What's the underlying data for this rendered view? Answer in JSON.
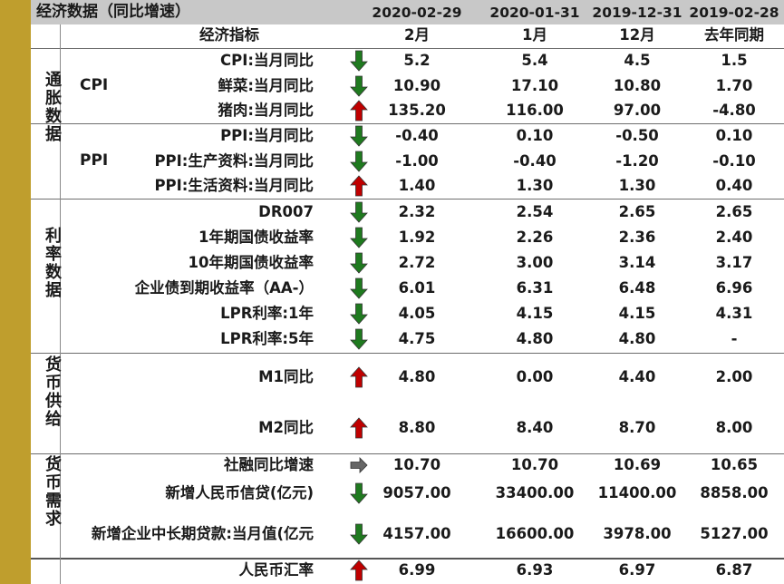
{
  "header": {
    "title": "经济数据（同比增速）",
    "dates": [
      "2020-02-29",
      "2020-01-31",
      "2019-12-31",
      "2019-02-28"
    ]
  },
  "columns": {
    "indicator": "经济指标",
    "c1": "2月",
    "c2": "1月",
    "c3": "12月",
    "c4": "去年同期"
  },
  "groups": {
    "inflation": "通胀数据",
    "rates": "利率数据",
    "money_supply": "货币供给",
    "money_demand": "货币需求"
  },
  "subgroups": {
    "cpi": "CPI",
    "ppi": "PPI"
  },
  "colors": {
    "up": "#c00000",
    "down": "#1f7a1f",
    "flat": "#666666",
    "gold": "#bf9e2d",
    "header_bg": "#c8c8c8"
  },
  "rows": [
    {
      "label": "CPI:当月同比",
      "trend": "down",
      "v1": "5.2",
      "v2": "5.4",
      "v3": "4.5",
      "v4": "1.5"
    },
    {
      "label": "鲜菜:当月同比",
      "trend": "down",
      "v1": "10.90",
      "v2": "17.10",
      "v3": "10.80",
      "v4": "1.70"
    },
    {
      "label": "猪肉:当月同比",
      "trend": "up",
      "v1": "135.20",
      "v2": "116.00",
      "v3": "97.00",
      "v4": "-4.80"
    },
    {
      "label": "PPI:当月同比",
      "trend": "down",
      "v1": "-0.40",
      "v2": "0.10",
      "v3": "-0.50",
      "v4": "0.10"
    },
    {
      "label": "PPI:生产资料:当月同比",
      "trend": "down",
      "v1": "-1.00",
      "v2": "-0.40",
      "v3": "-1.20",
      "v4": "-0.10"
    },
    {
      "label": "PPI:生活资料:当月同比",
      "trend": "up",
      "v1": "1.40",
      "v2": "1.30",
      "v3": "1.30",
      "v4": "0.40"
    },
    {
      "label": "DR007",
      "trend": "down",
      "v1": "2.32",
      "v2": "2.54",
      "v3": "2.65",
      "v4": "2.65"
    },
    {
      "label": "1年期国债收益率",
      "trend": "down",
      "v1": "1.92",
      "v2": "2.26",
      "v3": "2.36",
      "v4": "2.40"
    },
    {
      "label": "10年期国债收益率",
      "trend": "down",
      "v1": "2.72",
      "v2": "3.00",
      "v3": "3.14",
      "v4": "3.17"
    },
    {
      "label": "企业债到期收益率（AA-）",
      "trend": "down",
      "v1": "6.01",
      "v2": "6.31",
      "v3": "6.48",
      "v4": "6.96"
    },
    {
      "label": "LPR利率:1年",
      "trend": "down",
      "v1": "4.05",
      "v2": "4.15",
      "v3": "4.15",
      "v4": "4.31"
    },
    {
      "label": "LPR利率:5年",
      "trend": "down",
      "v1": "4.75",
      "v2": "4.80",
      "v3": "4.80",
      "v4": "-"
    },
    {
      "label": "M1同比",
      "trend": "up",
      "v1": "4.80",
      "v2": "0.00",
      "v3": "4.40",
      "v4": "2.00"
    },
    {
      "label": "M2同比",
      "trend": "up",
      "v1": "8.80",
      "v2": "8.40",
      "v3": "8.70",
      "v4": "8.00"
    },
    {
      "label": "社融同比增速",
      "trend": "flat",
      "v1": "10.70",
      "v2": "10.70",
      "v3": "10.69",
      "v4": "10.65"
    },
    {
      "label": "新增人民币信贷(亿元)",
      "trend": "down",
      "v1": "9057.00",
      "v2": "33400.00",
      "v3": "11400.00",
      "v4": "8858.00"
    },
    {
      "label": "新增企业中长期贷款:当月值(亿元",
      "trend": "down",
      "v1": "4157.00",
      "v2": "16600.00",
      "v3": "3978.00",
      "v4": "5127.00"
    },
    {
      "label": "人民币汇率",
      "trend": "up",
      "v1": "6.99",
      "v2": "6.93",
      "v3": "6.97",
      "v4": "6.87"
    }
  ]
}
